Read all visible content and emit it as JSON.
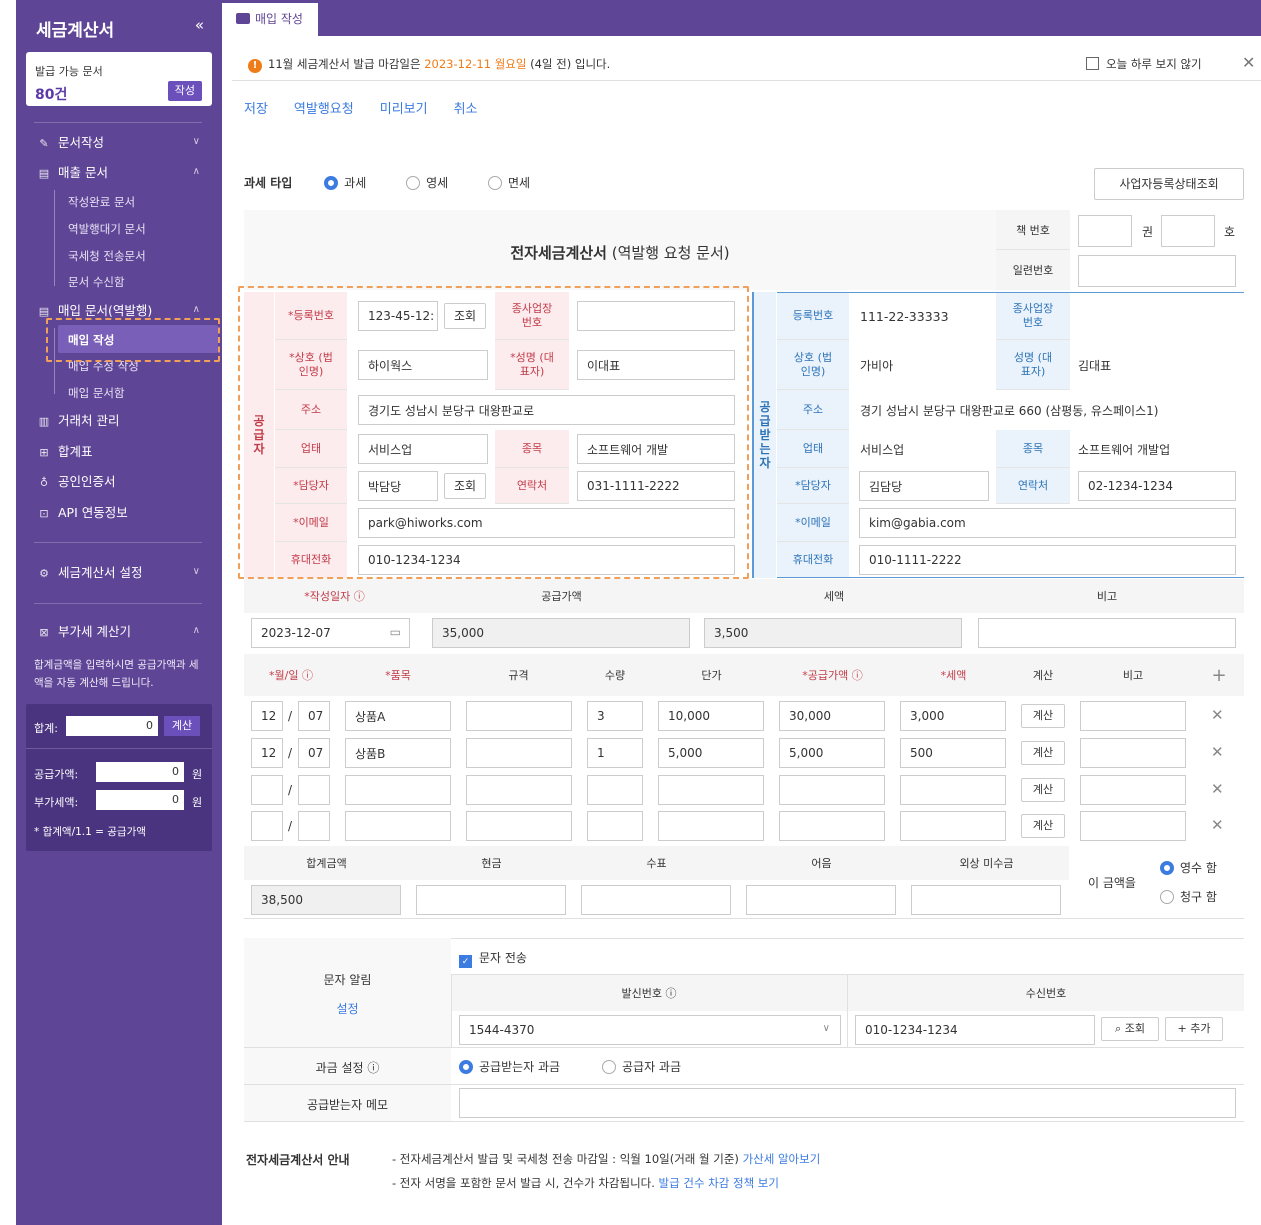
{
  "sidebar": {
    "title": "세금계산서",
    "collapse": "«",
    "card": {
      "label": "발급 가능 문서",
      "count": "80건",
      "button": "작성"
    },
    "menu": {
      "compose": "문서작성",
      "sales": "매출 문서",
      "sales_done": "작성완료 문서",
      "sales_reverse": "역발행대기 문서",
      "sales_nts": "국세청 전송문서",
      "sales_inbox": "문서 수신함",
      "purchase": "매입 문서(역발행)",
      "purchase_write": "매입 작성",
      "purchase_edit": "매입 수정 작성",
      "purchase_inbox": "매입 문서함",
      "partners": "거래처 관리",
      "summary": "합계표",
      "cert": "공인인증서",
      "api": "API 연동정보",
      "settings": "세금계산서 설정",
      "vat_calc": "부가세 계산기"
    },
    "calc": {
      "desc": "합계금액을 입력하시면 공급가액과 세액을 자동 계산해 드립니다.",
      "total_label": "합계:",
      "total_value": "0",
      "calc_button": "계산",
      "supply_label": "공급가액:",
      "supply_value": "0",
      "tax_label": "부가세액:",
      "tax_value": "0",
      "unit": "원",
      "note": "* 합계액/1.1 = 공급가액"
    }
  },
  "tab": {
    "label": "매입 작성"
  },
  "notice": {
    "prefix": "11월 세금계산서 발급 마감일은 ",
    "date": "2023-12-11 월요일",
    "suffix": " (4일 전) 입니다.",
    "dismiss": "오늘 하루 보지 않기",
    "close": "✕"
  },
  "actions": {
    "save": "저장",
    "reverse": "역발행요청",
    "preview": "미리보기",
    "cancel": "취소"
  },
  "taxtype": {
    "label": "과세 타입",
    "options": [
      "과세",
      "영세",
      "면세"
    ],
    "check_button": "사업자등록상태조회"
  },
  "doc": {
    "title": "전자세금계산서",
    "subtitle": "(역발행 요청 문서)",
    "book_no": "책 번호",
    "volume": "권",
    "number": "호",
    "serial": "일련번호"
  },
  "supplier": {
    "side": "공급자",
    "reg_label": "*등록번호",
    "reg_value": "123-45-12:",
    "lookup": "조회",
    "sub_label": "종사업장 번호",
    "name_label": "*상호 (법인명)",
    "name_value": "하이웍스",
    "rep_label": "*성명 (대표자)",
    "rep_value": "이대표",
    "addr_label": "주소",
    "addr_value": "경기도 성남시 분당구 대왕판교로",
    "biz_label": "업태",
    "biz_value": "서비스업",
    "item_label": "종목",
    "item_value": "소프트웨어 개발",
    "mgr_label": "*담당자",
    "mgr_value": "박담당",
    "contact_label": "연락처",
    "contact_value": "031-1111-2222",
    "email_label": "*이메일",
    "email_value": "park@hiworks.com",
    "phone_label": "휴대전화",
    "phone_value": "010-1234-1234"
  },
  "receiver": {
    "side": "공급받는자",
    "reg_label": "등록번호",
    "reg_value": "111-22-33333",
    "sub_label": "종사업장 번호",
    "name_label": "상호 (법인명)",
    "name_value": "가비아",
    "rep_label": "성명 (대표자)",
    "rep_value": "김대표",
    "addr_label": "주소",
    "addr_value": "경기 성남시 분당구 대왕판교로 660 (삼평동, 유스페이스1)",
    "biz_label": "업태",
    "biz_value": "서비스업",
    "item_label": "종목",
    "item_value": "소프트웨어 개발업",
    "mgr_label": "*담당자",
    "mgr_value": "김담당",
    "contact_label": "연락처",
    "contact_value": "02-1234-1234",
    "email_label": "*이메일",
    "email_value": "kim@gabia.com",
    "phone_label": "휴대전화",
    "phone_value": "010-1111-2222"
  },
  "summary": {
    "date_label": "*작성일자 ⓘ",
    "date_value": "2023-12-07",
    "supply_label": "공급가액",
    "supply_value": "35,000",
    "tax_label": "세액",
    "tax_value": "3,500",
    "memo_label": "비고"
  },
  "items": {
    "headers": {
      "md": "*월/일 ⓘ",
      "name": "*품목",
      "spec": "규격",
      "qty": "수량",
      "price": "단가",
      "supply": "*공급가액 ⓘ",
      "tax": "*세액",
      "calc": "계산",
      "memo": "비고",
      "add": "+"
    },
    "rows": [
      {
        "m": "12",
        "d": "07",
        "name": "상품A",
        "qty": "3",
        "price": "10,000",
        "supply": "30,000",
        "tax": "3,000"
      },
      {
        "m": "12",
        "d": "07",
        "name": "상품B",
        "qty": "1",
        "price": "5,000",
        "supply": "5,000",
        "tax": "500"
      },
      {
        "m": "",
        "d": "",
        "name": "",
        "qty": "",
        "price": "",
        "supply": "",
        "tax": ""
      },
      {
        "m": "",
        "d": "",
        "name": "",
        "qty": "",
        "price": "",
        "supply": "",
        "tax": ""
      }
    ],
    "calc_button": "계산",
    "slash": "/",
    "delete": "✕"
  },
  "totals": {
    "total_label": "합계금액",
    "total_value": "38,500",
    "cash": "현금",
    "check": "수표",
    "bill": "어음",
    "credit": "외상 미수금",
    "amount_is": "이 금액을",
    "receipt": "영수 함",
    "claim": "청구 함"
  },
  "sms": {
    "label": "문자 알림",
    "settings": "설정",
    "send": "문자 전송",
    "from_label": "발신번호 ⓘ",
    "from_value": "1544-4370",
    "to_label": "수신번호",
    "to_value": "010-1234-1234",
    "lookup": "조회",
    "add": "+ 추가"
  },
  "billing": {
    "label": "과금 설정 ⓘ",
    "opt1": "공급받는자 과금",
    "opt2": "공급자 과금"
  },
  "memo": {
    "label": "공급받는자 메모"
  },
  "guide": {
    "title": "전자세금계산서 안내",
    "line1": "- 전자세금계산서 발급 및 국세청 전송 마감일 : 익월 10일(거래 월 기준)",
    "link1": "가산세 알아보기",
    "line2": "- 전자 서명을 포함한 문서 발급 시, 건수가 차감됩니다.",
    "link2": "발급 건수 차감 정책 보기"
  }
}
